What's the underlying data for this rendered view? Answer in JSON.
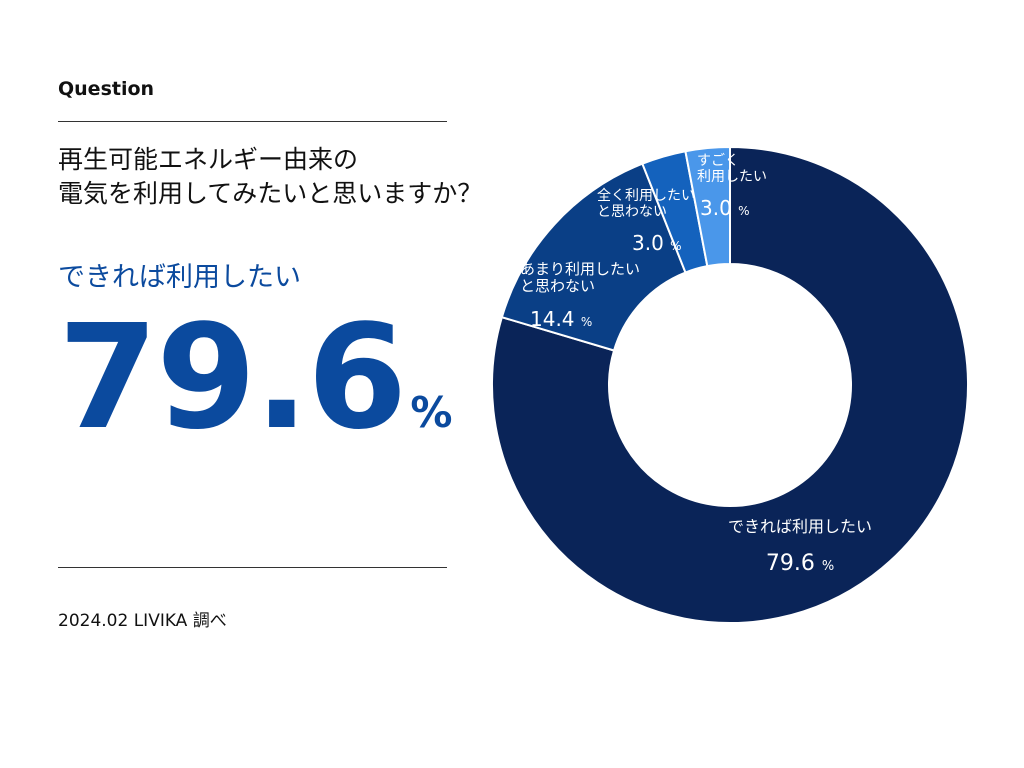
{
  "question_label": "Question",
  "question_lines": [
    "再生可能エネルギー由来の",
    "電気を利用してみたいと思いますか？"
  ],
  "highlight": {
    "answer": "できれば利用したい",
    "value": "79.6",
    "unit": "%"
  },
  "source": "2024.02 LIVIKA 調べ",
  "colors": {
    "accent": "#0b4a9e",
    "slice_1": "#0a2458",
    "slice_2": "#0a3f86",
    "slice_3": "#1462bd",
    "slice_4": "#4a97ea"
  },
  "chart_data": {
    "type": "pie",
    "style": "donut",
    "unit": "%",
    "slices": [
      {
        "label_lines": [
          "できれば利用したい"
        ],
        "value": 79.6,
        "display": "79.6"
      },
      {
        "label_lines": [
          "あまり利用したい",
          "と思わない"
        ],
        "value": 14.4,
        "display": "14.4"
      },
      {
        "label_lines": [
          "全く利用したい",
          "と思わない"
        ],
        "value": 3.0,
        "display": "3.0"
      },
      {
        "label_lines": [
          "すごく",
          "利用したい"
        ],
        "value": 3.0,
        "display": "3.0"
      }
    ]
  }
}
